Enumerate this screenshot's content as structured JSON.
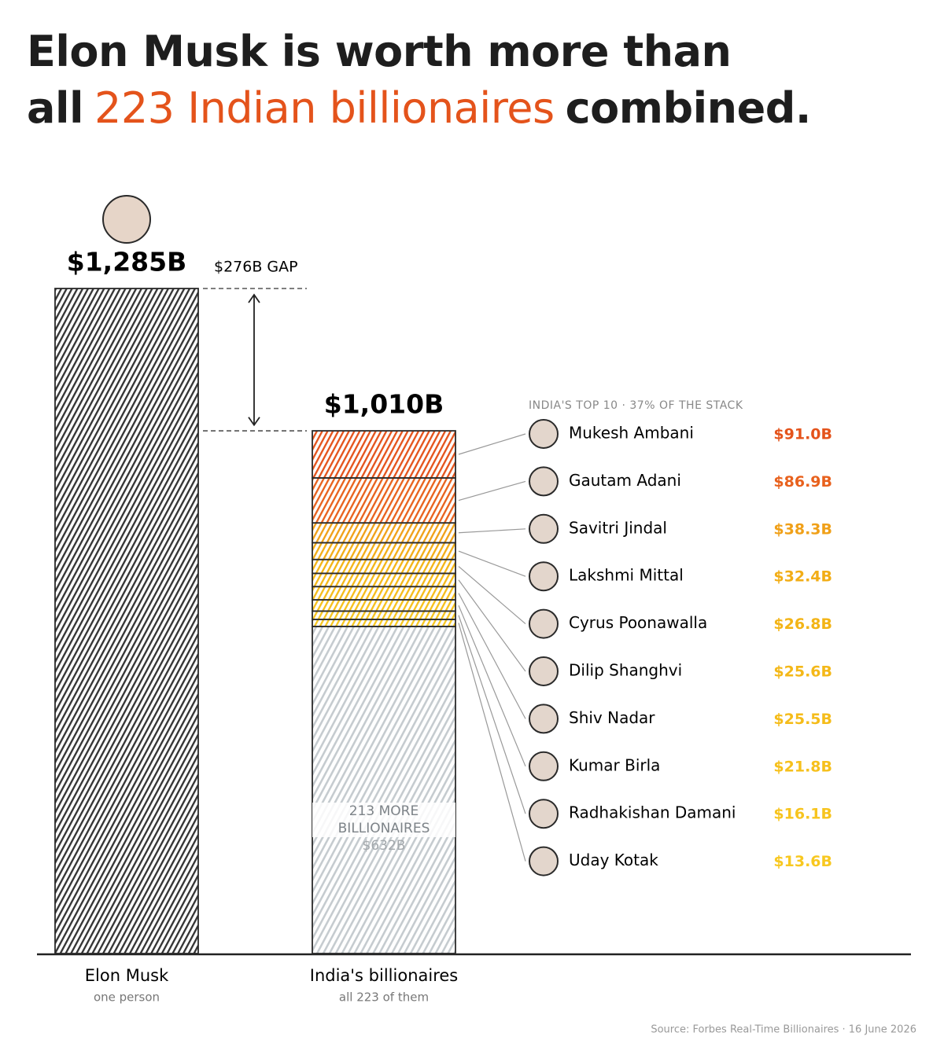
{
  "chart_data": {
    "type": "stacked-bar",
    "title": {
      "line1": "Elon Musk is worth more than",
      "line2": [
        "all",
        "223 Indian billionaires",
        "combined."
      ]
    },
    "gap": {
      "value": 276,
      "label": "$276B GAP"
    },
    "list_header": "INDIA'S TOP 10 · 37% OF THE STACK",
    "source": "Source: Forbes Real-Time Billionaires · 16 June 2026",
    "bars": [
      {
        "category": "Elon Musk",
        "note": "one person",
        "total": 1285,
        "total_label": "$1,285B",
        "segments": [
          {
            "value": 1285,
            "color": "#333333"
          }
        ]
      },
      {
        "category": "India's billionaires",
        "note": "all 223 of them",
        "total": 1010,
        "total_label": "$1,010B",
        "segments": [
          {
            "name": "Mukesh Ambani",
            "value": 91.0,
            "value_label": "$91.0B",
            "color": "#e4531b"
          },
          {
            "name": "Gautam Adani",
            "value": 86.9,
            "value_label": "$86.9B",
            "color": "#e8611d"
          },
          {
            "name": "Savitri Jindal",
            "value": 38.3,
            "value_label": "$38.3B",
            "color": "#f0a018"
          },
          {
            "name": "Lakshmi Mittal",
            "value": 32.4,
            "value_label": "$32.4B",
            "color": "#f2ad16"
          },
          {
            "name": "Cyrus Poonawalla",
            "value": 26.8,
            "value_label": "$26.8B",
            "color": "#f3b416"
          },
          {
            "name": "Dilip Shanghvi",
            "value": 25.6,
            "value_label": "$25.6B",
            "color": "#f4b818"
          },
          {
            "name": "Shiv Nadar",
            "value": 25.5,
            "value_label": "$25.5B",
            "color": "#f5bc1a"
          },
          {
            "name": "Kumar Birla",
            "value": 21.8,
            "value_label": "$21.8B",
            "color": "#f6c01c"
          },
          {
            "name": "Radhakishan Damani",
            "value": 16.1,
            "value_label": "$16.1B",
            "color": "#f7c41e"
          },
          {
            "name": "Uday Kotak",
            "value": 13.6,
            "value_label": "$13.6B",
            "color": "#f8c820"
          },
          {
            "name": "213 MORE BILLIONAIRES",
            "value": 632,
            "value_label": "$632B",
            "color": "#c5cbcf"
          }
        ]
      }
    ]
  }
}
